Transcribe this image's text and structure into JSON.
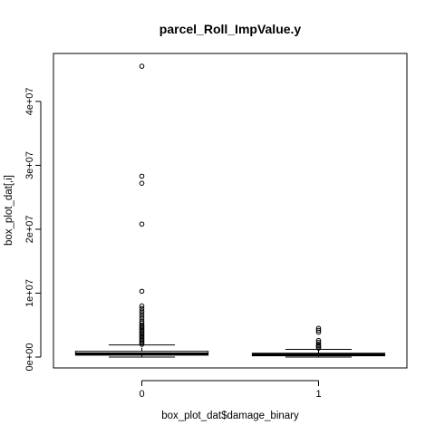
{
  "chart_data": {
    "type": "box",
    "title": "parcel_Roll_ImpValue.y",
    "xlabel": "box_plot_dat$damage_binary",
    "ylabel": "box_plot_dat[,i]",
    "categories": [
      "0",
      "1"
    ],
    "ylim": [
      -1700000,
      47500000
    ],
    "yticks": [
      0,
      10000000,
      20000000,
      30000000,
      40000000
    ],
    "ytick_labels": [
      "0e+00",
      "1e+07",
      "2e+07",
      "3e+07",
      "4e+07"
    ],
    "grid": false,
    "boxes": [
      {
        "category": "0",
        "whisker_low": 0,
        "q1": 300000,
        "median": 500000,
        "q3": 900000,
        "whisker_high": 1900000,
        "outliers": [
          2000000,
          2200000,
          2400000,
          2600000,
          2800000,
          3000000,
          3200000,
          3400000,
          3600000,
          3800000,
          4000000,
          4200000,
          4400000,
          4600000,
          4800000,
          5000000,
          5300000,
          5600000,
          6000000,
          6400000,
          6800000,
          7200000,
          7600000,
          8000000,
          10300000,
          20800000,
          27200000,
          28300000,
          45500000
        ]
      },
      {
        "category": "1",
        "whisker_low": 0,
        "q1": 200000,
        "median": 400000,
        "q3": 600000,
        "whisker_high": 1200000,
        "outliers": [
          1400000,
          1600000,
          1800000,
          2000000,
          2300000,
          2600000,
          3900000,
          4200000,
          4500000
        ]
      }
    ]
  }
}
